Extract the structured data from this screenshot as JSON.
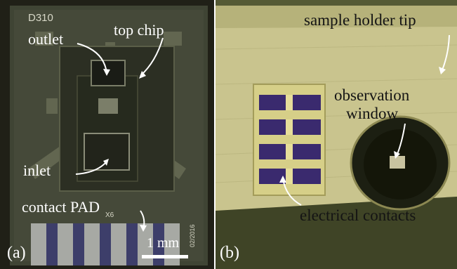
{
  "figure": {
    "panel_a": {
      "letter": "(a)",
      "chip_id": "D310",
      "annotations": {
        "outlet": "outlet",
        "top_chip": "top chip",
        "inlet": "inlet",
        "contact_pad": "contact PAD"
      },
      "scale_bar": "1 mm",
      "tiny_marks": {
        "x6": "X6",
        "date_code": "02/2016"
      }
    },
    "panel_b": {
      "letter": "(b)",
      "annotations": {
        "holder_tip": "sample holder tip",
        "observation_window": [
          "observation",
          "window"
        ],
        "electrical_contacts": "electrical contacts"
      }
    }
  }
}
